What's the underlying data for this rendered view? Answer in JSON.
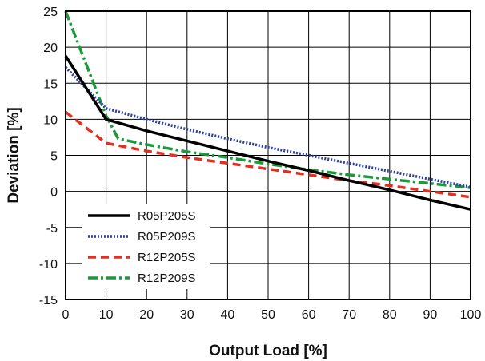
{
  "chart_data": {
    "type": "line",
    "title": "",
    "xlabel": "Output Load [%]",
    "ylabel": "Deviation [%]",
    "xlim": [
      0,
      100
    ],
    "ylim": [
      -15,
      25
    ],
    "x_ticks": [
      0,
      10,
      20,
      30,
      40,
      50,
      60,
      70,
      80,
      90,
      100
    ],
    "y_ticks": [
      25,
      20,
      15,
      10,
      5,
      0,
      -5,
      -10,
      -15
    ],
    "x_tick_labels": [
      "0",
      "10",
      "20",
      "30",
      "40",
      "50",
      "60",
      "70",
      "80",
      "90",
      "100"
    ],
    "y_tick_labels": [
      "25",
      "20",
      "15",
      "10",
      "5",
      "0",
      "-5",
      "-10",
      "-15"
    ],
    "grid": true,
    "legend_position": "lower-left",
    "series": [
      {
        "name": "R05P205S",
        "color": "#000000",
        "style": "solid",
        "points": [
          [
            0,
            18.8
          ],
          [
            10,
            10
          ],
          [
            20,
            8.4
          ],
          [
            30,
            7
          ],
          [
            40,
            5.6
          ],
          [
            50,
            4.2
          ],
          [
            60,
            2.9
          ],
          [
            70,
            1.5
          ],
          [
            80,
            0.2
          ],
          [
            90,
            -1.2
          ],
          [
            100,
            -2.5
          ]
        ]
      },
      {
        "name": "R05P209S",
        "color": "#2b3f9e",
        "style": "dotted",
        "points": [
          [
            0,
            17.2
          ],
          [
            10,
            11.5
          ],
          [
            20,
            10
          ],
          [
            30,
            8.6
          ],
          [
            40,
            7.3
          ],
          [
            50,
            6.1
          ],
          [
            60,
            5
          ],
          [
            70,
            3.9
          ],
          [
            80,
            2.8
          ],
          [
            90,
            1.7
          ],
          [
            100,
            0.6
          ]
        ]
      },
      {
        "name": "R12P205S",
        "color": "#e03020",
        "style": "dashed",
        "points": [
          [
            0,
            11
          ],
          [
            10,
            6.7
          ],
          [
            20,
            5.6
          ],
          [
            30,
            4.7
          ],
          [
            40,
            3.9
          ],
          [
            50,
            3.1
          ],
          [
            60,
            2.3
          ],
          [
            70,
            1.5
          ],
          [
            80,
            0.8
          ],
          [
            90,
            0
          ],
          [
            100,
            -0.8
          ]
        ]
      },
      {
        "name": "R12P209S",
        "color": "#1a9a3a",
        "style": "dashdot",
        "points": [
          [
            0,
            25
          ],
          [
            10,
            10.5
          ],
          [
            13,
            7.3
          ],
          [
            20,
            6.5
          ],
          [
            30,
            5.5
          ],
          [
            40,
            4.7
          ],
          [
            50,
            3.8
          ],
          [
            60,
            3
          ],
          [
            70,
            2.3
          ],
          [
            80,
            1.7
          ],
          [
            90,
            1.1
          ],
          [
            100,
            0.5
          ]
        ]
      }
    ]
  }
}
